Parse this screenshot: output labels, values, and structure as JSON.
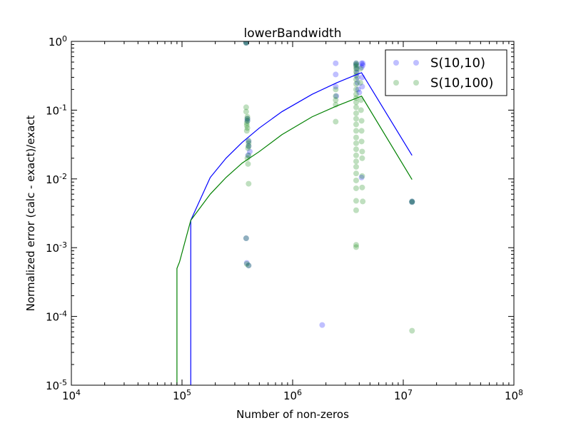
{
  "chart_data": {
    "type": "scatter",
    "title": "lowerBandwidth",
    "xlabel": "Number of non-zeros",
    "ylabel": "Normalized error (calc - exact)/exact",
    "xscale": "log",
    "yscale": "log",
    "xlim": [
      10000,
      100000000
    ],
    "ylim": [
      1e-05,
      1
    ],
    "grid": false,
    "legend_position": "top-right",
    "x_ticks": [
      {
        "value": 10000,
        "base": "10",
        "exp": "4"
      },
      {
        "value": 100000,
        "base": "10",
        "exp": "5"
      },
      {
        "value": 1000000,
        "base": "10",
        "exp": "6"
      },
      {
        "value": 10000000,
        "base": "10",
        "exp": "7"
      },
      {
        "value": 100000000,
        "base": "10",
        "exp": "8"
      }
    ],
    "y_ticks": [
      {
        "value": 1e-05,
        "base": "10",
        "exp": "-5"
      },
      {
        "value": 0.0001,
        "base": "10",
        "exp": "-4"
      },
      {
        "value": 0.001,
        "base": "10",
        "exp": "-3"
      },
      {
        "value": 0.01,
        "base": "10",
        "exp": "-2"
      },
      {
        "value": 0.1,
        "base": "10",
        "exp": "-1"
      },
      {
        "value": 1,
        "base": "10",
        "exp": "0"
      }
    ],
    "series": [
      {
        "name": "S(10,10)",
        "color": "#0000ff",
        "point_alpha": 0.25,
        "points": [
          [
            380000,
            0.98
          ],
          [
            380000,
            0.95
          ],
          [
            390000,
            0.075
          ],
          [
            390000,
            0.07
          ],
          [
            400000,
            0.035
          ],
          [
            400000,
            0.03
          ],
          [
            410000,
            0.025
          ],
          [
            395000,
            0.022
          ],
          [
            385000,
            0.0006
          ],
          [
            400000,
            0.00055
          ],
          [
            380000,
            0.00137
          ],
          [
            1850000,
            7.5e-05
          ],
          [
            2450000,
            0.48
          ],
          [
            2450000,
            0.33
          ],
          [
            2450000,
            0.22
          ],
          [
            2480000,
            0.16
          ],
          [
            3750000,
            0.48
          ],
          [
            3750000,
            0.45
          ],
          [
            3800000,
            0.4
          ],
          [
            3800000,
            0.35
          ],
          [
            3850000,
            0.3
          ],
          [
            3850000,
            0.25
          ],
          [
            3900000,
            0.2
          ],
          [
            4000000,
            0.18
          ],
          [
            4200000,
            0.48
          ],
          [
            4200000,
            0.42
          ],
          [
            4250000,
            0.3
          ],
          [
            4250000,
            0.22
          ],
          [
            4300000,
            0.48
          ],
          [
            4300000,
            0.45
          ],
          [
            4200000,
            0.0105
          ],
          [
            12000000,
            0.0047
          ],
          [
            12000000,
            0.0046
          ]
        ],
        "line": [
          [
            120000,
            1e-05
          ],
          [
            120000,
            0.0025
          ],
          [
            180000,
            0.0105
          ],
          [
            250000,
            0.02
          ],
          [
            350000,
            0.034
          ],
          [
            500000,
            0.055
          ],
          [
            800000,
            0.095
          ],
          [
            1500000,
            0.17
          ],
          [
            2500000,
            0.25
          ],
          [
            3800000,
            0.33
          ],
          [
            4200000,
            0.35
          ],
          [
            12000000,
            0.022
          ]
        ]
      },
      {
        "name": "S(10,100)",
        "color": "#008000",
        "point_alpha": 0.25,
        "points": [
          [
            380000,
            0.97
          ],
          [
            380000,
            0.95
          ],
          [
            380000,
            0.11
          ],
          [
            380000,
            0.095
          ],
          [
            390000,
            0.08
          ],
          [
            390000,
            0.075
          ],
          [
            390000,
            0.07
          ],
          [
            385000,
            0.065
          ],
          [
            385000,
            0.06
          ],
          [
            390000,
            0.055
          ],
          [
            385000,
            0.05
          ],
          [
            400000,
            0.036
          ],
          [
            400000,
            0.033
          ],
          [
            400000,
            0.03
          ],
          [
            395000,
            0.028
          ],
          [
            390000,
            0.02
          ],
          [
            400000,
            0.022
          ],
          [
            395000,
            0.0165
          ],
          [
            400000,
            0.0085
          ],
          [
            380000,
            0.00137
          ],
          [
            385000,
            0.00058
          ],
          [
            400000,
            0.00055
          ],
          [
            2450000,
            0.068
          ],
          [
            2450000,
            0.12
          ],
          [
            2450000,
            0.14
          ],
          [
            2450000,
            0.16
          ],
          [
            2450000,
            0.2
          ],
          [
            3750000,
            0.48
          ],
          [
            3750000,
            0.46
          ],
          [
            3750000,
            0.43
          ],
          [
            3750000,
            0.4
          ],
          [
            3750000,
            0.36
          ],
          [
            3750000,
            0.32
          ],
          [
            3750000,
            0.28
          ],
          [
            3750000,
            0.24
          ],
          [
            3750000,
            0.2
          ],
          [
            3750000,
            0.17
          ],
          [
            3750000,
            0.15
          ],
          [
            3750000,
            0.13
          ],
          [
            3750000,
            0.11
          ],
          [
            3750000,
            0.09
          ],
          [
            3750000,
            0.075
          ],
          [
            3750000,
            0.062
          ],
          [
            3750000,
            0.05
          ],
          [
            3750000,
            0.04
          ],
          [
            3750000,
            0.033
          ],
          [
            3750000,
            0.027
          ],
          [
            3750000,
            0.022
          ],
          [
            3750000,
            0.018
          ],
          [
            3750000,
            0.015
          ],
          [
            3750000,
            0.012
          ],
          [
            3750000,
            0.0095
          ],
          [
            3750000,
            0.0073
          ],
          [
            3750000,
            0.0048
          ],
          [
            3750000,
            0.0035
          ],
          [
            3750000,
            0.0011
          ],
          [
            3750000,
            0.00102
          ],
          [
            4100000,
            0.4
          ],
          [
            4100000,
            0.25
          ],
          [
            4150000,
            0.14
          ],
          [
            4150000,
            0.1
          ],
          [
            4200000,
            0.07
          ],
          [
            4200000,
            0.05
          ],
          [
            4200000,
            0.035
          ],
          [
            4250000,
            0.025
          ],
          [
            4250000,
            0.02
          ],
          [
            4250000,
            0.011
          ],
          [
            4250000,
            0.0075
          ],
          [
            4300000,
            0.0047
          ],
          [
            12000000,
            0.0047
          ],
          [
            12000000,
            0.0046
          ],
          [
            12000000,
            6.2e-05
          ]
        ],
        "line": [
          [
            90000,
            1e-05
          ],
          [
            90000,
            0.0005
          ],
          [
            95000,
            0.00062
          ],
          [
            120000,
            0.0025
          ],
          [
            180000,
            0.006
          ],
          [
            250000,
            0.0105
          ],
          [
            350000,
            0.017
          ],
          [
            500000,
            0.025
          ],
          [
            800000,
            0.044
          ],
          [
            1500000,
            0.08
          ],
          [
            2500000,
            0.115
          ],
          [
            3800000,
            0.15
          ],
          [
            4200000,
            0.16
          ],
          [
            12000000,
            0.0098
          ]
        ]
      }
    ]
  }
}
